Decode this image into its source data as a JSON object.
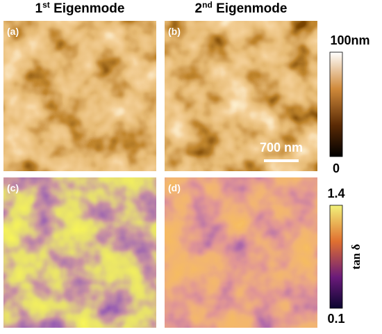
{
  "columns": [
    {
      "base": "1",
      "sup": "st",
      "rest": "Eigenmode"
    },
    {
      "base": "2",
      "sup": "nd",
      "rest": "Eigenmode"
    }
  ],
  "panels": [
    "(a)",
    "(b)",
    "(c)",
    "(d)"
  ],
  "scale_bar": "700 nm",
  "height_colorbar": {
    "max": "100nm",
    "min": "0"
  },
  "tan_colorbar": {
    "max": "1.4",
    "min": "0.1",
    "label": "tan δ"
  }
}
